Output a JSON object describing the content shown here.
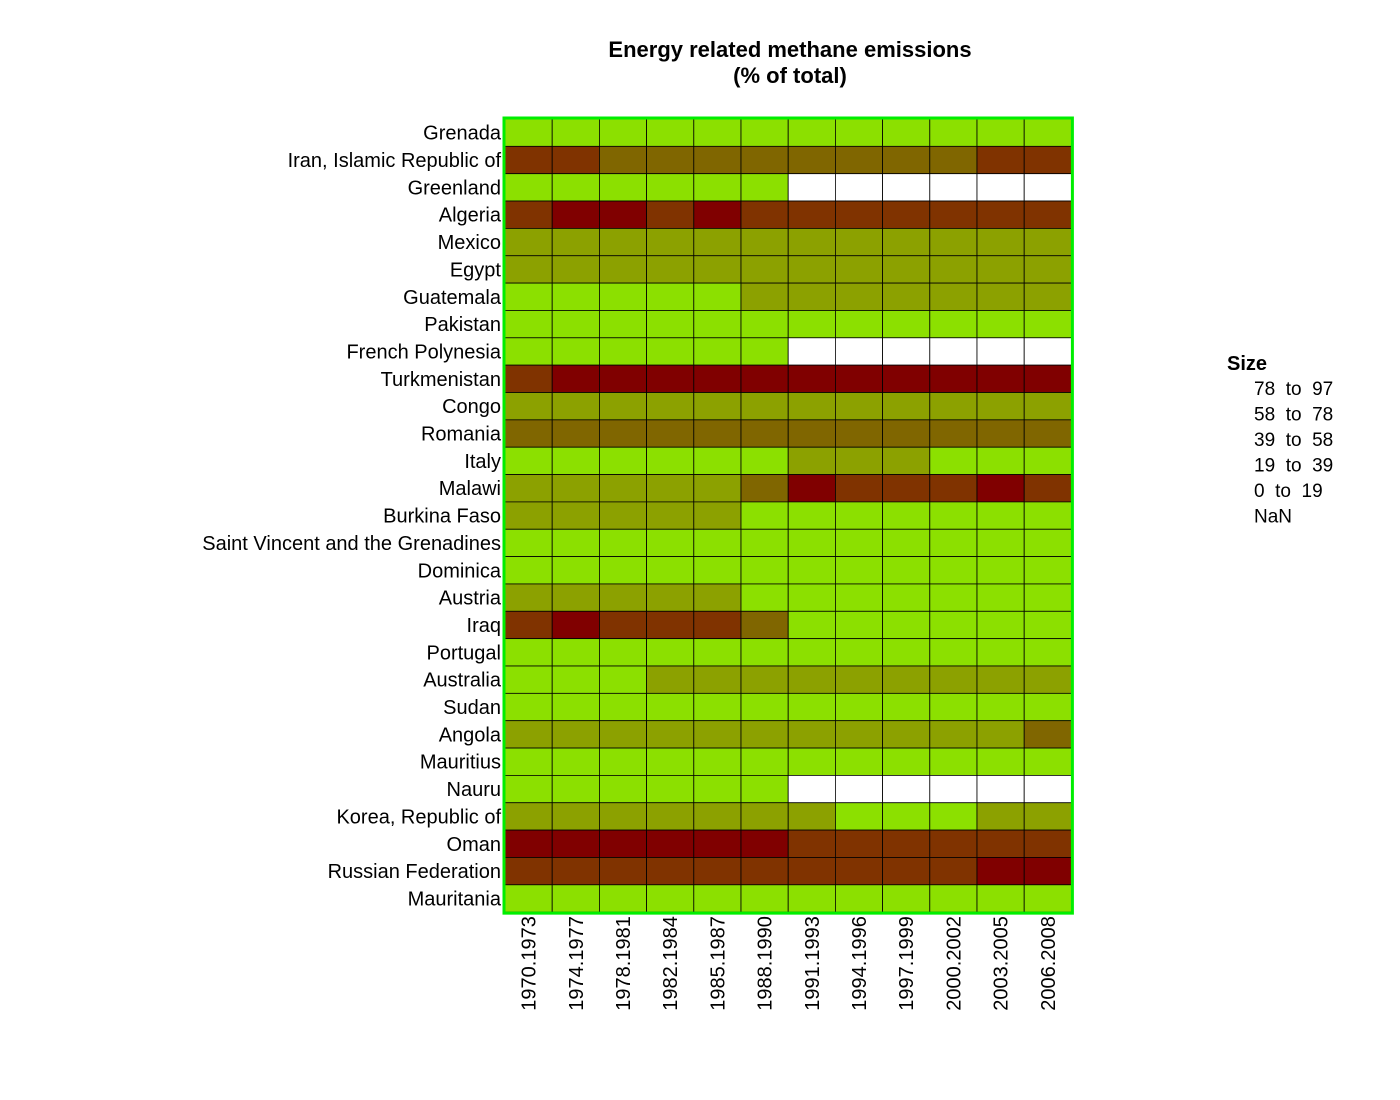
{
  "chart_data": {
    "type": "heatmap",
    "title": [
      "Energy related methane emissions",
      "(% of total)"
    ],
    "rows": [
      "Grenada",
      "Iran, Islamic Republic of",
      "Greenland",
      "Algeria",
      "Mexico",
      "Egypt",
      "Guatemala",
      "Pakistan",
      "French Polynesia",
      "Turkmenistan",
      "Congo",
      "Romania",
      "Italy",
      "Malawi",
      "Burkina Faso",
      "Saint Vincent and the Grenadines",
      "Dominica",
      "Austria",
      "Iraq",
      "Portugal",
      "Australia",
      "Sudan",
      "Angola",
      "Mauritius",
      "Nauru",
      "Korea, Republic of",
      "Oman",
      "Russian Federation",
      "Mauritania"
    ],
    "columns": [
      "1970.1973",
      "1974.1977",
      "1978.1981",
      "1982.1984",
      "1985.1987",
      "1988.1990",
      "1991.1993",
      "1994.1996",
      "1997.1999",
      "2000.2002",
      "2003.2005",
      "2006.2008"
    ],
    "legend": {
      "title": "Size",
      "position": "right",
      "bins": [
        {
          "label": "78  to  97",
          "color": "#800000"
        },
        {
          "label": "58  to  78",
          "color": "#803300"
        },
        {
          "label": "39  to  58",
          "color": "#806600"
        },
        {
          "label": "19  to  39",
          "color": "#8ca100"
        },
        {
          "label": "0  to  19",
          "color": "#8ce000"
        },
        {
          "label": "NaN",
          "color": "#ffffff"
        }
      ]
    },
    "bin_levels": [
      [
        0,
        0,
        0,
        0,
        0,
        0,
        0,
        0,
        0,
        0,
        0,
        0
      ],
      [
        3,
        3,
        2,
        2,
        2,
        2,
        2,
        2,
        2,
        2,
        3,
        3
      ],
      [
        0,
        0,
        0,
        0,
        0,
        0,
        null,
        null,
        null,
        null,
        null,
        null
      ],
      [
        3,
        4,
        4,
        3,
        4,
        3,
        3,
        3,
        3,
        3,
        3,
        3
      ],
      [
        1,
        1,
        1,
        1,
        1,
        1,
        1,
        1,
        1,
        1,
        1,
        1
      ],
      [
        1,
        1,
        1,
        1,
        1,
        1,
        1,
        1,
        1,
        1,
        1,
        1
      ],
      [
        0,
        0,
        0,
        0,
        0,
        1,
        1,
        1,
        1,
        1,
        1,
        1
      ],
      [
        0,
        0,
        0,
        0,
        0,
        0,
        0,
        0,
        0,
        0,
        0,
        0
      ],
      [
        0,
        0,
        0,
        0,
        0,
        0,
        null,
        null,
        null,
        null,
        null,
        null
      ],
      [
        3,
        4,
        4,
        4,
        4,
        4,
        4,
        4,
        4,
        4,
        4,
        4
      ],
      [
        1,
        1,
        1,
        1,
        1,
        1,
        1,
        1,
        1,
        1,
        1,
        1
      ],
      [
        2,
        2,
        2,
        2,
        2,
        2,
        2,
        2,
        2,
        2,
        2,
        2
      ],
      [
        0,
        0,
        0,
        0,
        0,
        0,
        1,
        1,
        1,
        0,
        0,
        0
      ],
      [
        1,
        1,
        1,
        1,
        1,
        2,
        4,
        3,
        3,
        3,
        4,
        3
      ],
      [
        1,
        1,
        1,
        1,
        1,
        0,
        0,
        0,
        0,
        0,
        0,
        0
      ],
      [
        0,
        0,
        0,
        0,
        0,
        0,
        0,
        0,
        0,
        0,
        0,
        0
      ],
      [
        0,
        0,
        0,
        0,
        0,
        0,
        0,
        0,
        0,
        0,
        0,
        0
      ],
      [
        1,
        1,
        1,
        1,
        1,
        0,
        0,
        0,
        0,
        0,
        0,
        0
      ],
      [
        3,
        4,
        3,
        3,
        3,
        2,
        0,
        0,
        0,
        0,
        0,
        0
      ],
      [
        0,
        0,
        0,
        0,
        0,
        0,
        0,
        0,
        0,
        0,
        0,
        0
      ],
      [
        0,
        0,
        0,
        1,
        1,
        1,
        1,
        1,
        1,
        1,
        1,
        1
      ],
      [
        0,
        0,
        0,
        0,
        0,
        0,
        0,
        0,
        0,
        0,
        0,
        0
      ],
      [
        1,
        1,
        1,
        1,
        1,
        1,
        1,
        1,
        1,
        1,
        1,
        2
      ],
      [
        0,
        0,
        0,
        0,
        0,
        0,
        0,
        0,
        0,
        0,
        0,
        0
      ],
      [
        0,
        0,
        0,
        0,
        0,
        0,
        null,
        null,
        null,
        null,
        null,
        null
      ],
      [
        1,
        1,
        1,
        1,
        1,
        1,
        1,
        0,
        0,
        0,
        1,
        1
      ],
      [
        4,
        4,
        4,
        4,
        4,
        4,
        3,
        3,
        3,
        3,
        3,
        3
      ],
      [
        3,
        3,
        3,
        3,
        3,
        3,
        3,
        3,
        3,
        3,
        4,
        4
      ],
      [
        0,
        0,
        0,
        0,
        0,
        0,
        0,
        0,
        0,
        0,
        0,
        0
      ]
    ],
    "bin_level_colors": [
      "#8ce000",
      "#8ca100",
      "#806600",
      "#803300",
      "#800000"
    ],
    "nan_color": "#ffffff",
    "grid": true,
    "frame_color": "#00ee00"
  }
}
